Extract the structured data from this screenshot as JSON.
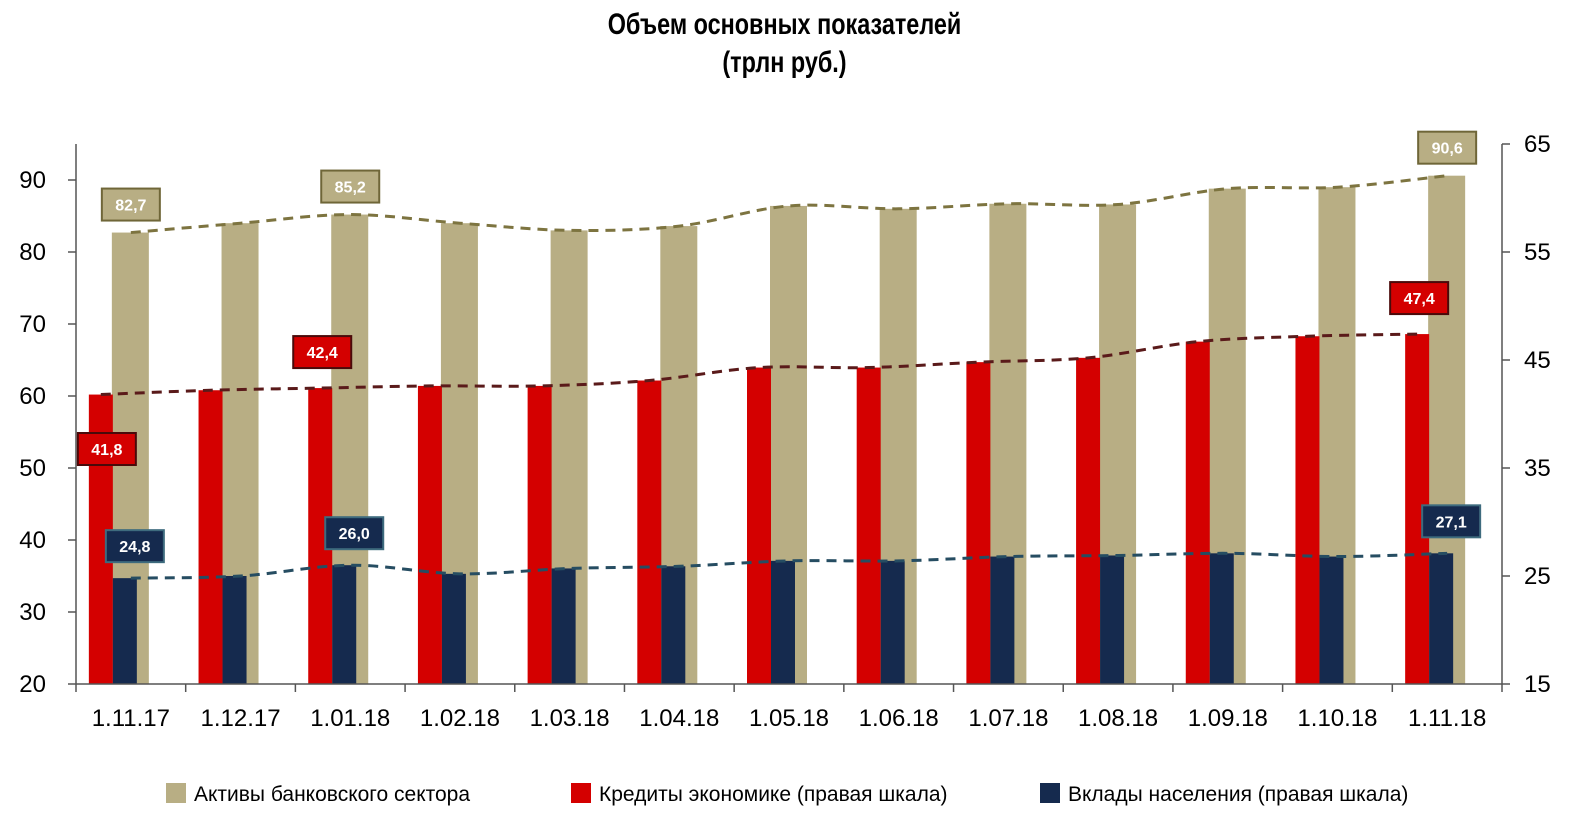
{
  "chart_data": {
    "type": "bar",
    "title_lines": [
      "Объем основных показателей",
      "(трлн руб.)"
    ],
    "categories": [
      "1.11.17",
      "1.12.17",
      "1.01.18",
      "1.02.18",
      "1.03.18",
      "1.04.18",
      "1.05.18",
      "1.06.18",
      "1.07.18",
      "1.08.18",
      "1.09.18",
      "1.10.18",
      "1.11.18"
    ],
    "y_left": {
      "min": 20,
      "max": 95,
      "ticks": [
        20,
        30,
        40,
        50,
        60,
        70,
        80,
        90
      ]
    },
    "y_right": {
      "min": 15,
      "max": 65,
      "ticks": [
        15,
        25,
        35,
        45,
        55,
        65
      ]
    },
    "grid": false,
    "legend_position": "bottom",
    "series": [
      {
        "name": "Активы банковского сектора",
        "axis": "left",
        "color": "#B8AE84",
        "trend_color": "#7D7440",
        "values": [
          82.7,
          84.0,
          85.2,
          84.0,
          83.0,
          83.6,
          86.4,
          86.0,
          86.7,
          86.6,
          88.8,
          89.0,
          90.6
        ]
      },
      {
        "name": "Кредиты экономике (правая шкала)",
        "axis": "right",
        "color": "#D40000",
        "trend_color": "#5A1A1A",
        "values": [
          41.8,
          42.2,
          42.4,
          42.6,
          42.6,
          43.1,
          44.3,
          44.3,
          44.8,
          45.2,
          46.7,
          47.2,
          47.4
        ]
      },
      {
        "name": "Вклады населения (правая шкала)",
        "axis": "right",
        "color": "#152A4E",
        "trend_color": "#264D62",
        "values": [
          24.8,
          25.0,
          26.0,
          25.2,
          25.7,
          25.9,
          26.4,
          26.4,
          26.8,
          26.9,
          27.1,
          26.8,
          27.1
        ]
      }
    ],
    "data_labels": [
      {
        "series": 0,
        "index": 0,
        "text": "82,7"
      },
      {
        "series": 0,
        "index": 2,
        "text": "85,2"
      },
      {
        "series": 0,
        "index": 12,
        "text": "90,6"
      },
      {
        "series": 1,
        "index": 0,
        "text": "41,8"
      },
      {
        "series": 1,
        "index": 2,
        "text": "42,4"
      },
      {
        "series": 1,
        "index": 12,
        "text": "47,4"
      },
      {
        "series": 2,
        "index": 0,
        "text": "24,8"
      },
      {
        "series": 2,
        "index": 2,
        "text": "26,0"
      },
      {
        "series": 2,
        "index": 12,
        "text": "27,1"
      }
    ]
  }
}
